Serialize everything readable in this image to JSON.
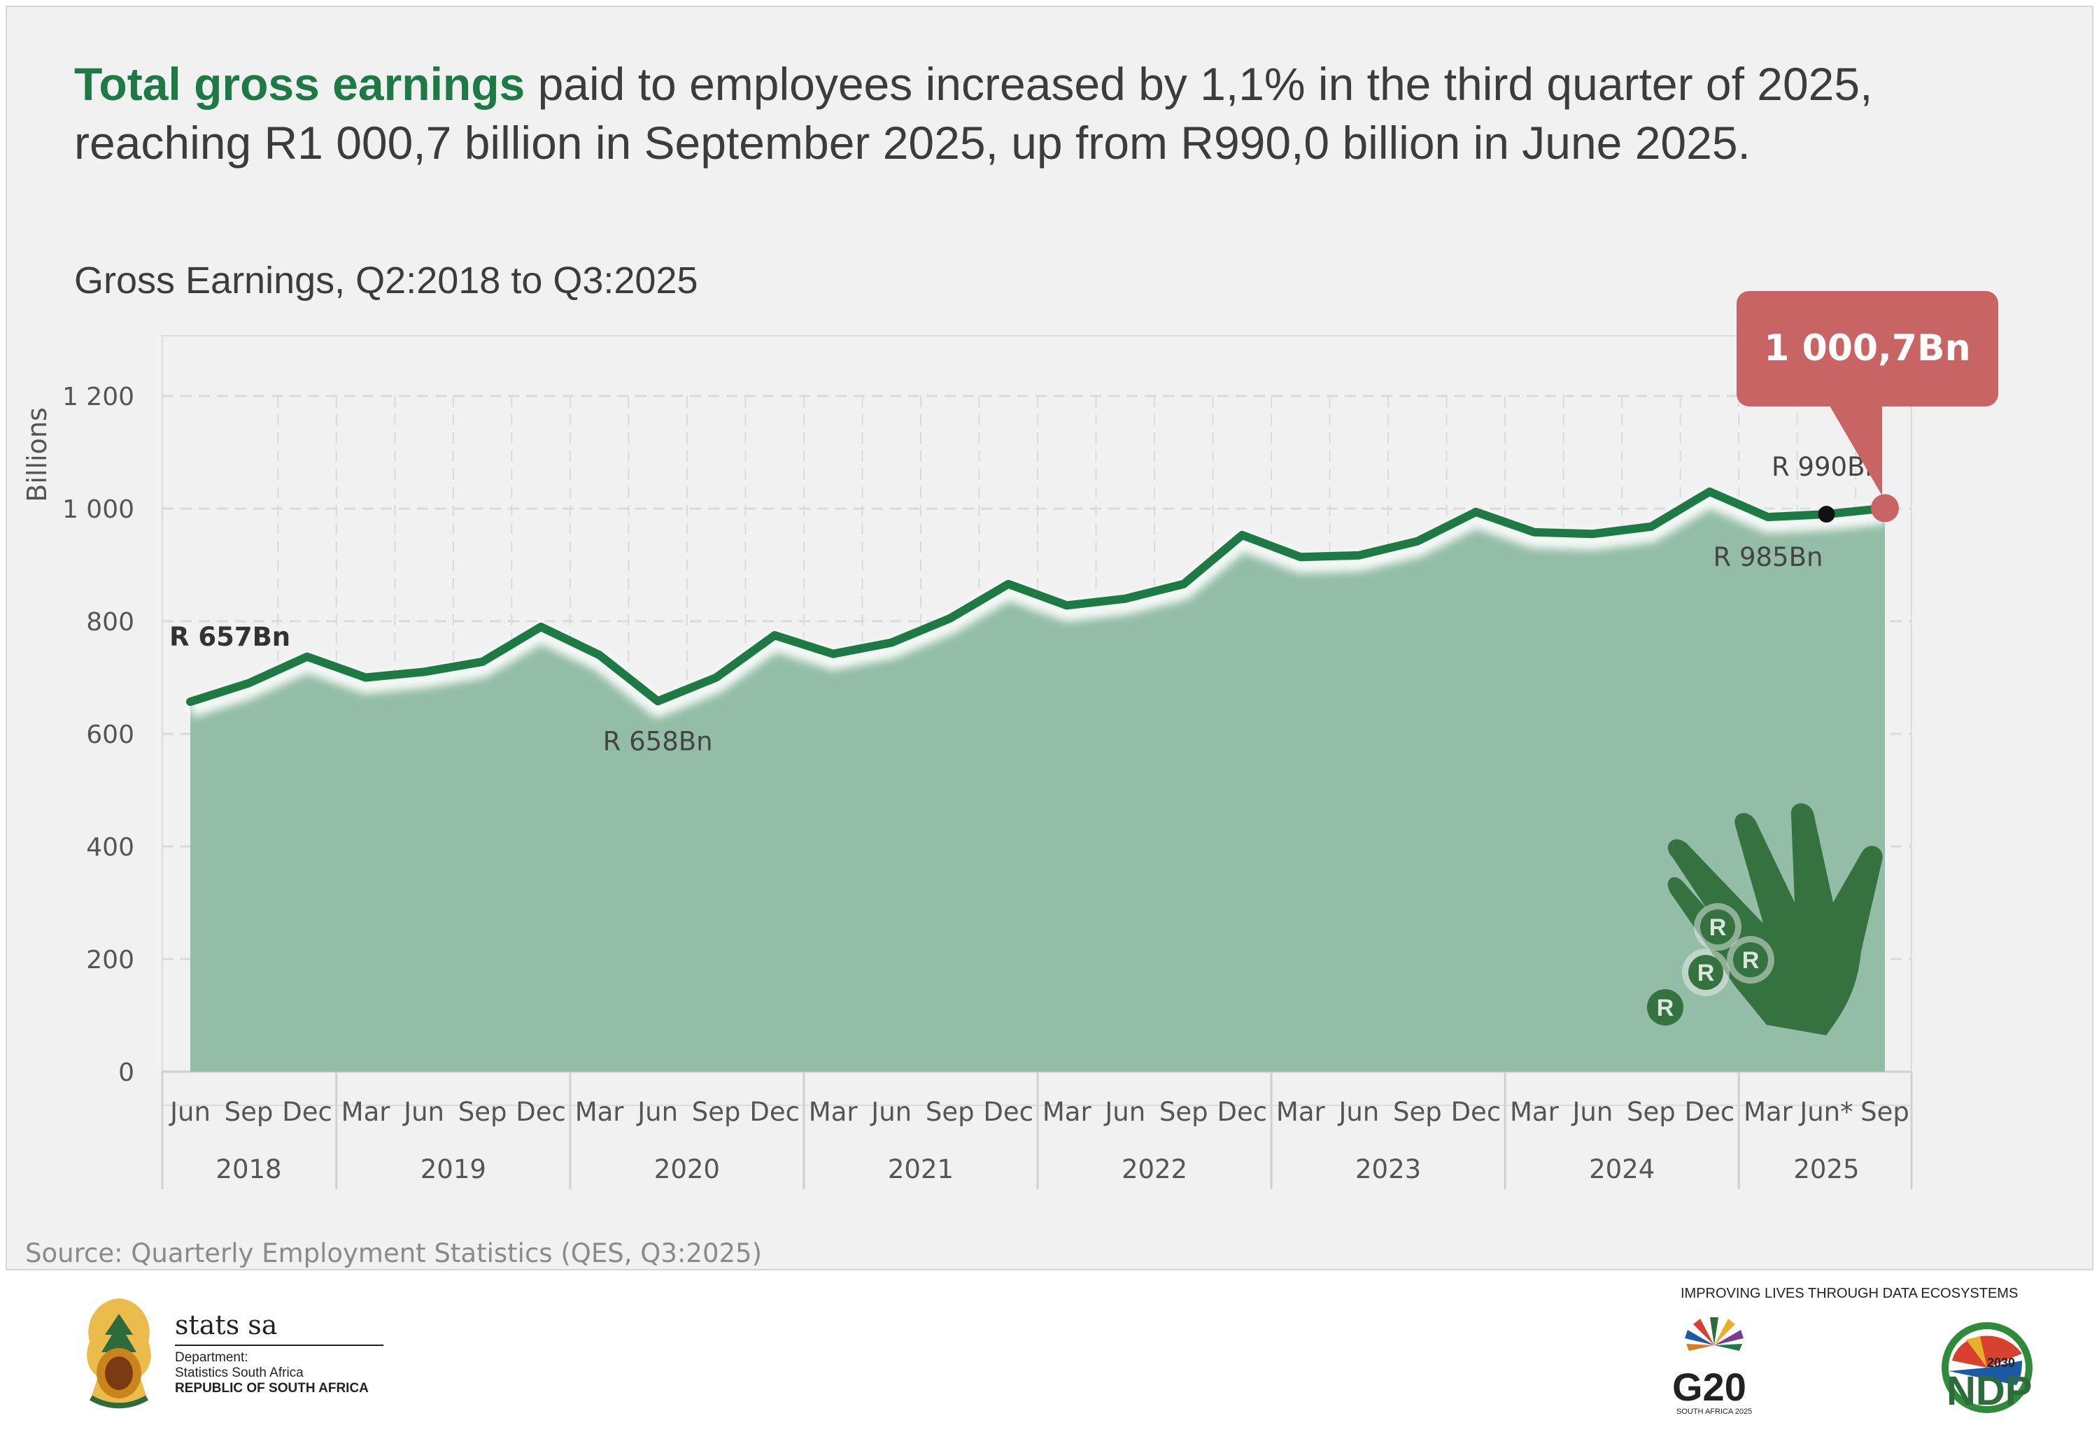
{
  "header": {
    "headline_highlight": "Total gross earnings",
    "headline_rest": " paid to employees increased by 1,1% in the third quarter of 2025, reaching R1 000,7 billion in September 2025, up from R990,0 billion in June 2025.",
    "subtitle": "Gross Earnings, Q2:2018 to Q3:2025"
  },
  "chart_data": {
    "type": "area",
    "title": "Gross Earnings, Q2:2018 to Q3:2025",
    "ylabel": "Billions",
    "ylim": [
      0,
      1200
    ],
    "yticks": [
      0,
      200,
      400,
      600,
      800,
      1000,
      1200
    ],
    "ytick_labels": [
      "0",
      "200",
      "400",
      "600",
      "800",
      "1 000",
      "1 200"
    ],
    "grid": true,
    "categories": [
      "Jun",
      "Sep",
      "Dec",
      "Mar",
      "Jun",
      "Sep",
      "Dec",
      "Mar",
      "Jun",
      "Sep",
      "Dec",
      "Mar",
      "Jun",
      "Sep",
      "Dec",
      "Mar",
      "Jun",
      "Sep",
      "Dec",
      "Mar",
      "Jun",
      "Sep",
      "Dec",
      "Mar",
      "Jun",
      "Sep",
      "Dec",
      "Mar",
      "Jun*",
      "Sep"
    ],
    "years": [
      {
        "label": "2018",
        "count": 3
      },
      {
        "label": "2019",
        "count": 4
      },
      {
        "label": "2020",
        "count": 4
      },
      {
        "label": "2021",
        "count": 4
      },
      {
        "label": "2022",
        "count": 4
      },
      {
        "label": "2023",
        "count": 4
      },
      {
        "label": "2024",
        "count": 4
      },
      {
        "label": "2025",
        "count": 3
      }
    ],
    "series": [
      {
        "values": [
          657,
          690,
          737,
          700,
          710,
          728,
          790,
          740,
          658,
          700,
          775,
          742,
          762,
          805,
          866,
          828,
          840,
          866,
          953,
          914,
          917,
          942,
          994,
          958,
          955,
          968,
          1030,
          985,
          990,
          1000.7
        ]
      }
    ],
    "annotations": [
      {
        "index": 0,
        "text": "R 657Bn",
        "bold": true
      },
      {
        "index": 8,
        "text": "R 658Bn",
        "bold": false
      },
      {
        "index": 27,
        "text": "R 985Bn",
        "bold": false
      },
      {
        "index": 28,
        "text": "R 990Bn",
        "bold": false
      }
    ],
    "callout": {
      "index": 29,
      "text": "1 000,7Bn"
    },
    "colors": {
      "line": "#1e7a45",
      "area": "#93bda7",
      "callout": "#c96464",
      "marker": "#111111"
    }
  },
  "source": "Source: Quarterly Employment Statistics (QES, Q3:2025)",
  "footer": {
    "brand": "stats sa",
    "department": "Department:",
    "dept_name": "Statistics South Africa",
    "republic": "REPUBLIC OF SOUTH AFRICA",
    "slogan": "IMPROVING LIVES THROUGH DATA ECOSYSTEMS",
    "g20_text": "G20",
    "g20_sub": "SOUTH AFRICA 2025",
    "ndp_text": "NDP",
    "ndp_year": "2030"
  }
}
